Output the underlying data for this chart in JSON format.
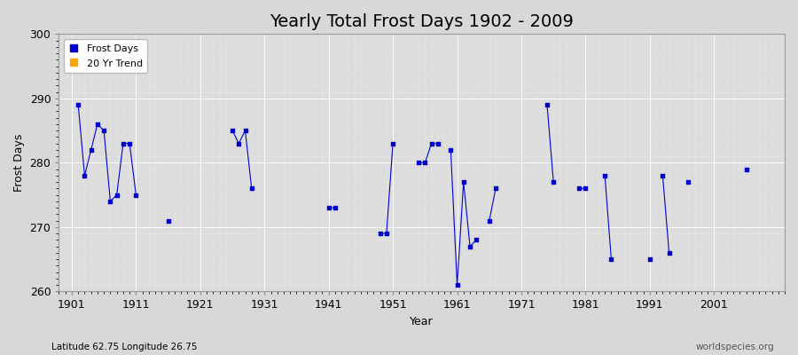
{
  "title": "Yearly Total Frost Days 1902 - 2009",
  "xlabel": "Year",
  "ylabel": "Frost Days",
  "subtitle": "Latitude 62.75 Longitude 26.75",
  "watermark": "worldspecies.org",
  "ylim": [
    260,
    300
  ],
  "yticks": [
    260,
    270,
    280,
    290,
    300
  ],
  "xticks": [
    1901,
    1911,
    1921,
    1931,
    1941,
    1951,
    1961,
    1971,
    1981,
    1991,
    2001
  ],
  "xlim": [
    1899,
    2012
  ],
  "line_color": "#0000cc",
  "marker_color": "#0000cc",
  "marker": "s",
  "marker_size": 2.5,
  "background_color": "#d8d8d8",
  "plot_bg_color": "#dcdcdc",
  "legend_frost_color": "#0000cc",
  "legend_trend_color": "#ffa500",
  "data_years": [
    1902,
    1903,
    1904,
    1905,
    1906,
    1907,
    1908,
    1909,
    1910,
    1911,
    1916,
    1926,
    1927,
    1928,
    1929,
    1941,
    1942,
    1949,
    1950,
    1951,
    1955,
    1956,
    1957,
    1958,
    1960,
    1961,
    1962,
    1963,
    1964,
    1966,
    1967,
    1975,
    1976,
    1980,
    1981,
    1984,
    1985,
    1991,
    1993,
    1994,
    1997,
    2006
  ],
  "data_values": [
    289,
    278,
    282,
    286,
    285,
    274,
    275,
    283,
    283,
    275,
    271,
    285,
    283,
    285,
    276,
    273,
    273,
    269,
    269,
    283,
    280,
    280,
    283,
    283,
    282,
    261,
    277,
    267,
    268,
    271,
    276,
    289,
    277,
    276,
    276,
    278,
    265,
    265,
    278,
    266,
    277,
    279
  ],
  "title_fontsize": 14,
  "axis_fontsize": 9,
  "label_fontsize": 9
}
